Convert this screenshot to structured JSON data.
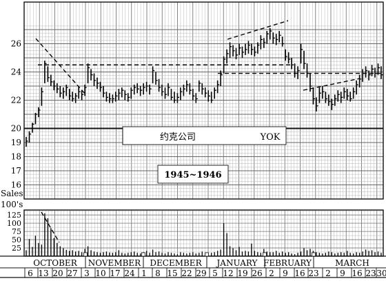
{
  "chart_data": {
    "type": "bar",
    "subtype": "high-low-close price chart with volume bars",
    "company_cn": "约克公司",
    "ticker": "YOK",
    "period": "1945~1946",
    "price_axis": {
      "range": [
        15,
        27.4
      ],
      "tick_labels": [
        "26",
        "24",
        "22",
        "20",
        "19",
        "18",
        "17",
        "16"
      ],
      "tick_values": [
        26,
        24,
        22,
        20,
        19,
        18,
        17,
        16
      ],
      "scale_break": 20
    },
    "volume_axis": {
      "label_line1": "Sales",
      "label_line2": "100's",
      "range": [
        0,
        140
      ],
      "tick_labels": [
        "125",
        "100",
        "75",
        "50",
        "25"
      ],
      "tick_values": [
        125,
        100,
        75,
        50,
        25
      ]
    },
    "grid": true,
    "months": [
      "OCTOBER",
      "NOVEMBER",
      "DECEMBER",
      "JANUARY",
      "FEBRUARY",
      "MARCH"
    ],
    "week_labels": [
      "6",
      "13",
      "20",
      "27",
      "3",
      "10",
      "17",
      "24",
      "1",
      "8",
      "15",
      "22",
      "29",
      "5",
      "12",
      "19",
      "26",
      "2",
      "9",
      "16",
      "23",
      "2",
      "9",
      "16",
      "23",
      "30"
    ],
    "resistance_lines": [
      24.5,
      23.9
    ],
    "prices": [
      [
        19.4,
        18.7,
        19.1
      ],
      [
        19.8,
        19.0,
        19.6
      ],
      [
        20.4,
        19.7,
        20.3
      ],
      [
        21.1,
        20.3,
        21.0
      ],
      [
        21.5,
        20.8,
        21.3
      ],
      [
        22.9,
        21.6,
        22.6
      ],
      [
        24.8,
        23.2,
        24.6
      ],
      [
        24.4,
        23.3,
        23.6
      ],
      [
        23.8,
        23.0,
        23.3
      ],
      [
        23.4,
        22.7,
        23.0
      ],
      [
        23.2,
        22.5,
        22.8
      ],
      [
        23.0,
        22.2,
        22.5
      ],
      [
        22.9,
        22.1,
        22.6
      ],
      [
        23.1,
        22.3,
        22.9
      ],
      [
        22.8,
        22.0,
        22.3
      ],
      [
        22.6,
        21.9,
        22.1
      ],
      [
        22.5,
        21.8,
        22.3
      ],
      [
        23.0,
        22.1,
        22.6
      ],
      [
        22.7,
        22.0,
        22.4
      ],
      [
        23.1,
        22.3,
        22.9
      ],
      [
        24.6,
        23.2,
        24.3
      ],
      [
        24.2,
        23.4,
        23.8
      ],
      [
        23.9,
        23.0,
        23.4
      ],
      [
        23.6,
        22.8,
        23.2
      ],
      [
        23.3,
        22.6,
        22.9
      ],
      [
        23.0,
        22.2,
        22.5
      ],
      [
        22.6,
        21.9,
        22.2
      ],
      [
        22.5,
        21.8,
        22.1
      ],
      [
        22.4,
        21.8,
        22.1
      ],
      [
        22.6,
        21.9,
        22.3
      ],
      [
        22.8,
        22.0,
        22.5
      ],
      [
        22.9,
        22.2,
        22.7
      ],
      [
        22.7,
        22.0,
        22.4
      ],
      [
        22.5,
        21.9,
        22.2
      ],
      [
        22.9,
        22.1,
        22.7
      ],
      [
        23.1,
        22.4,
        22.9
      ],
      [
        23.2,
        22.5,
        22.8
      ],
      [
        23.0,
        22.3,
        22.7
      ],
      [
        23.2,
        22.4,
        22.9
      ],
      [
        23.3,
        22.6,
        23.0
      ],
      [
        23.1,
        22.4,
        22.8
      ],
      [
        24.4,
        23.2,
        24.1
      ],
      [
        24.0,
        23.1,
        23.4
      ],
      [
        23.5,
        22.6,
        22.9
      ],
      [
        23.1,
        22.3,
        22.6
      ],
      [
        22.9,
        22.1,
        22.4
      ],
      [
        23.2,
        22.3,
        22.9
      ],
      [
        22.8,
        22.0,
        22.2
      ],
      [
        22.6,
        21.8,
        22.0
      ],
      [
        22.5,
        21.8,
        22.2
      ],
      [
        22.9,
        22.0,
        22.6
      ],
      [
        23.1,
        22.3,
        22.8
      ],
      [
        23.4,
        22.6,
        23.1
      ],
      [
        23.2,
        22.4,
        22.7
      ],
      [
        22.8,
        22.0,
        22.3
      ],
      [
        22.5,
        21.8,
        22.1
      ],
      [
        23.4,
        22.6,
        23.2
      ],
      [
        23.2,
        22.4,
        22.8
      ],
      [
        22.9,
        22.2,
        22.5
      ],
      [
        22.7,
        21.9,
        22.3
      ],
      [
        22.6,
        21.8,
        22.0
      ],
      [
        22.9,
        22.1,
        22.7
      ],
      [
        23.4,
        22.5,
        23.1
      ],
      [
        24.1,
        23.0,
        23.8
      ],
      [
        25.1,
        23.9,
        24.9
      ],
      [
        25.6,
        24.6,
        25.3
      ],
      [
        26.1,
        25.0,
        25.8
      ],
      [
        25.9,
        25.1,
        25.5
      ],
      [
        25.7,
        24.9,
        25.2
      ],
      [
        26.0,
        25.2,
        25.7
      ],
      [
        25.8,
        25.0,
        25.4
      ],
      [
        26.0,
        25.2,
        25.6
      ],
      [
        26.2,
        25.3,
        25.9
      ],
      [
        26.0,
        25.2,
        25.6
      ],
      [
        25.8,
        25.1,
        25.4
      ],
      [
        26.1,
        25.3,
        25.9
      ],
      [
        26.6,
        25.6,
        26.3
      ],
      [
        26.4,
        25.7,
        26.1
      ],
      [
        26.9,
        26.0,
        26.7
      ],
      [
        27.1,
        26.3,
        26.9
      ],
      [
        26.8,
        26.0,
        26.4
      ],
      [
        26.7,
        25.9,
        26.3
      ],
      [
        26.9,
        26.1,
        26.6
      ],
      [
        26.5,
        25.8,
        26.0
      ],
      [
        25.6,
        24.8,
        25.1
      ],
      [
        25.4,
        24.6,
        24.9
      ],
      [
        25.0,
        24.2,
        24.5
      ],
      [
        24.6,
        23.6,
        23.9
      ],
      [
        24.4,
        23.5,
        24.1
      ],
      [
        26.0,
        24.6,
        25.6
      ],
      [
        25.5,
        24.2,
        24.6
      ],
      [
        24.6,
        23.6,
        23.9
      ],
      [
        23.9,
        22.6,
        23.0
      ],
      [
        22.9,
        21.7,
        22.1
      ],
      [
        22.2,
        21.2,
        21.6
      ],
      [
        22.9,
        21.8,
        22.5
      ],
      [
        23.0,
        22.1,
        22.6
      ],
      [
        22.6,
        21.8,
        22.1
      ],
      [
        22.4,
        21.6,
        21.9
      ],
      [
        22.1,
        21.3,
        21.7
      ],
      [
        22.4,
        21.6,
        22.1
      ],
      [
        22.7,
        21.9,
        22.4
      ],
      [
        22.6,
        21.8,
        22.2
      ],
      [
        22.9,
        22.1,
        22.6
      ],
      [
        22.8,
        22.0,
        22.3
      ],
      [
        22.6,
        21.9,
        22.1
      ],
      [
        22.9,
        22.1,
        22.6
      ],
      [
        23.4,
        22.4,
        23.1
      ],
      [
        23.8,
        22.9,
        23.5
      ],
      [
        24.2,
        23.3,
        23.9
      ],
      [
        24.4,
        23.6,
        24.1
      ],
      [
        24.1,
        23.4,
        23.8
      ],
      [
        24.5,
        23.7,
        24.2
      ],
      [
        24.3,
        23.6,
        23.9
      ],
      [
        24.6,
        23.8,
        24.3
      ],
      [
        24.4,
        23.5,
        23.8
      ]
    ],
    "volumes": [
      18,
      52,
      28,
      62,
      40,
      35,
      130,
      115,
      85,
      55,
      40,
      30,
      24,
      19,
      16,
      18,
      14,
      16,
      12,
      22,
      30,
      18,
      14,
      12,
      10,
      12,
      14,
      11,
      10,
      12,
      18,
      10,
      8,
      10,
      12,
      14,
      10,
      8,
      12,
      16,
      10,
      20,
      12,
      14,
      10,
      8,
      12,
      10,
      8,
      6,
      12,
      10,
      8,
      10,
      12,
      8,
      10,
      14,
      8,
      6,
      10,
      12,
      16,
      20,
      100,
      70,
      30,
      24,
      18,
      28,
      14,
      16,
      14,
      38,
      16,
      12,
      10,
      22,
      14,
      12,
      12,
      16,
      10,
      14,
      10,
      12,
      8,
      6,
      10,
      14,
      24,
      18,
      22,
      16,
      12,
      10,
      8,
      10,
      14,
      12,
      8,
      10,
      12,
      10,
      16,
      10,
      8,
      12,
      10,
      14,
      20,
      16,
      18,
      12,
      14,
      10
    ]
  }
}
